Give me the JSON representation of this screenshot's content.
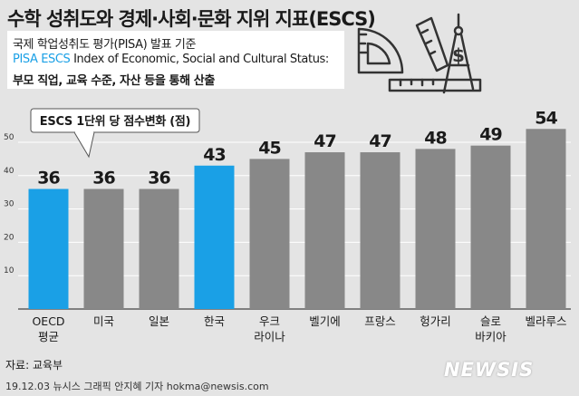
{
  "header": {
    "title": "수학 성취도와 경제·사회·문화 지위 지표(ESCS)",
    "line1": "국제 학업성취도 평가(PISA) 발표 기준",
    "line2_highlight": "PISA ESCS",
    "line2_rest": " Index of Economic, Social and Cultural Status:",
    "line3": "부모 직업, 교육 수준, 자산 등을 통해 산출"
  },
  "colors": {
    "highlight": "#1aa0e6",
    "bar_default": "#888888",
    "grid": "#ffffff",
    "background": "#e4e4e4"
  },
  "chart_data": {
    "type": "bar",
    "annotation": "ESCS 1단위 당 점수변화 (점)",
    "categories": [
      "OECD 평균",
      "미국",
      "일본",
      "한국",
      "우크 라이나",
      "벨기에",
      "프랑스",
      "헝가리",
      "슬로 바키아",
      "벨라루스"
    ],
    "category_lines": [
      [
        "OECD",
        "평균"
      ],
      [
        "미국"
      ],
      [
        "일본"
      ],
      [
        "한국"
      ],
      [
        "우크",
        "라이나"
      ],
      [
        "벨기에"
      ],
      [
        "프랑스"
      ],
      [
        "헝가리"
      ],
      [
        "슬로",
        "바키아"
      ],
      [
        "벨라루스"
      ]
    ],
    "values": [
      36,
      36,
      36,
      43,
      45,
      47,
      47,
      48,
      49,
      54
    ],
    "highlighted": [
      "OECD 평균",
      "한국"
    ],
    "yticks": [
      0,
      10,
      20,
      30,
      40,
      50
    ],
    "ylim": [
      0,
      57
    ],
    "grid": true
  },
  "footer": {
    "source": "자료: 교육부",
    "credit": "19.12.03 뉴시스 그래픽 안지혜 기자 hokma@newsis.com",
    "logo": "NEWSIS"
  }
}
